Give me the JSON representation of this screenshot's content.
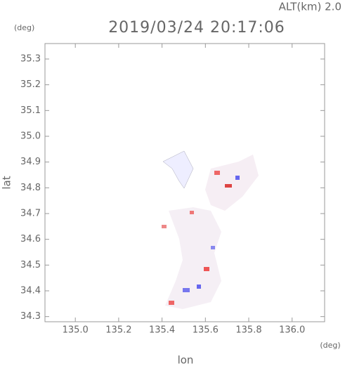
{
  "chart_data": {
    "type": "heatmap",
    "title": "2019/03/24 20:17:06",
    "subtitle": "ALT(km) 2.0",
    "y_unit": "(deg)",
    "x_unit": "(deg)",
    "xlabel": "lon",
    "ylabel": "lat",
    "xlim": [
      134.86,
      136.15
    ],
    "ylim": [
      34.28,
      35.36
    ],
    "xticks": [
      {
        "value": 135,
        "label": "135.0"
      },
      135.2,
      135.4,
      135.6,
      135.8,
      {
        "value": 136,
        "label": "136.0"
      }
    ],
    "yticks": [
      34.3,
      34.4,
      34.5,
      34.6,
      34.7,
      34.8,
      34.9,
      {
        "value": 35,
        "label": "35.0"
      },
      35.1,
      35.2,
      35.3
    ]
  }
}
